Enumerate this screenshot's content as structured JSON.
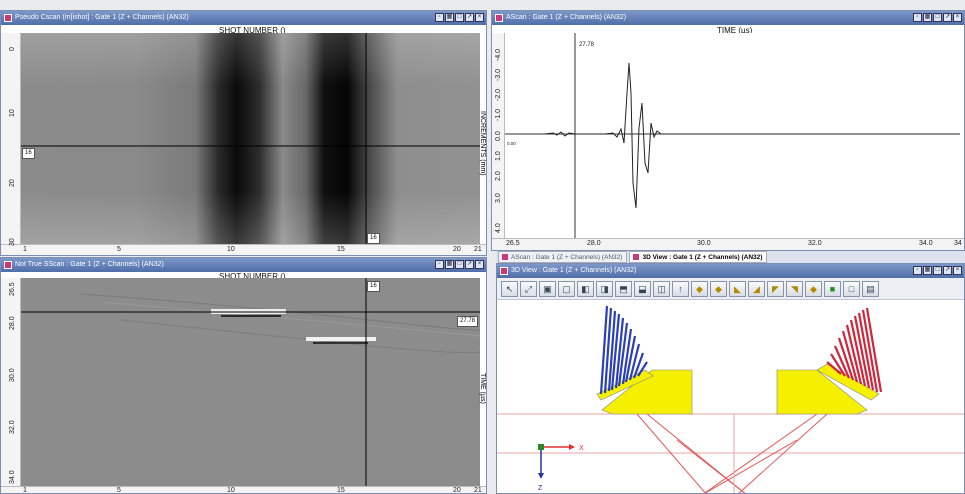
{
  "panels": {
    "top_left": {
      "title": "Pseudo Cscan (m[ishot] : Gate 1 (Z + Channels) (AN32)",
      "x_axis_title": "SHOT NUMBER ()",
      "y_axis_title": "INCREMENTS (mm)",
      "x_ticks": [
        "1",
        "5",
        "10",
        "15",
        "20",
        "21"
      ],
      "y_ticks": [
        "0",
        "10",
        "20",
        "30"
      ],
      "cursor_h_label": "16",
      "cursor_v_label": "16"
    },
    "top_right": {
      "title": "AScan : Gate 1 (Z + Channels) (AN32)",
      "x_axis_title": "TIME (µs)",
      "x_ticks": [
        "26.5",
        "28.0",
        "30.0",
        "32.0",
        "34.0",
        "34"
      ],
      "y_ticks": [
        "-4.0",
        "-3.0",
        "-2.0",
        "-1.0",
        "0.0",
        "1.0",
        "2.0",
        "3.0",
        "4.0"
      ],
      "cursor_label": "27.78",
      "zero_label": "0.00"
    },
    "bottom_left": {
      "title": "Not True SScan : Gate 1 (Z + Channels) (AN32)",
      "x_axis_title": "SHOT NUMBER ()",
      "y_axis_title": "TIME (µs)",
      "x_ticks": [
        "1",
        "5",
        "10",
        "15",
        "20",
        "21"
      ],
      "y_ticks": [
        "26.5",
        "28.0",
        "30.0",
        "32.0",
        "34.0"
      ],
      "cursor_v_label": "16",
      "cursor_h_label": "27.78"
    },
    "bottom_right": {
      "tabs": [
        "AScan : Gate 1 (Z + Channels) (AN32)",
        "3D View : Gate 1 (Z + Channels) (AN32)"
      ],
      "title": "3D View : Gate 1 (Z + Channels) (AN32)",
      "tools": [
        "select-tool-icon",
        "fit-icon",
        "view-front-icon",
        "view-back-icon",
        "view-left-icon",
        "view-right-icon",
        "view-top-icon",
        "view-bottom-icon",
        "view-iso-icon",
        "arrow-up-icon",
        "probe-icon",
        "probe-icon-2",
        "probe-icon-3",
        "wedge-icon",
        "wedge-icon-2",
        "wedge-icon-3",
        "wedge-icon-4",
        "solid-view-icon",
        "wire-view-icon",
        "hidden-view-icon"
      ],
      "axes": {
        "x": "X",
        "z": "Z"
      }
    }
  },
  "colors": {
    "title_bar": "#5a78b2",
    "probe_left": "#2a3fb8",
    "probe_right": "#d2243a",
    "wedge": "#f5f000",
    "beam": "#e44a4a",
    "signal": "#222222"
  }
}
